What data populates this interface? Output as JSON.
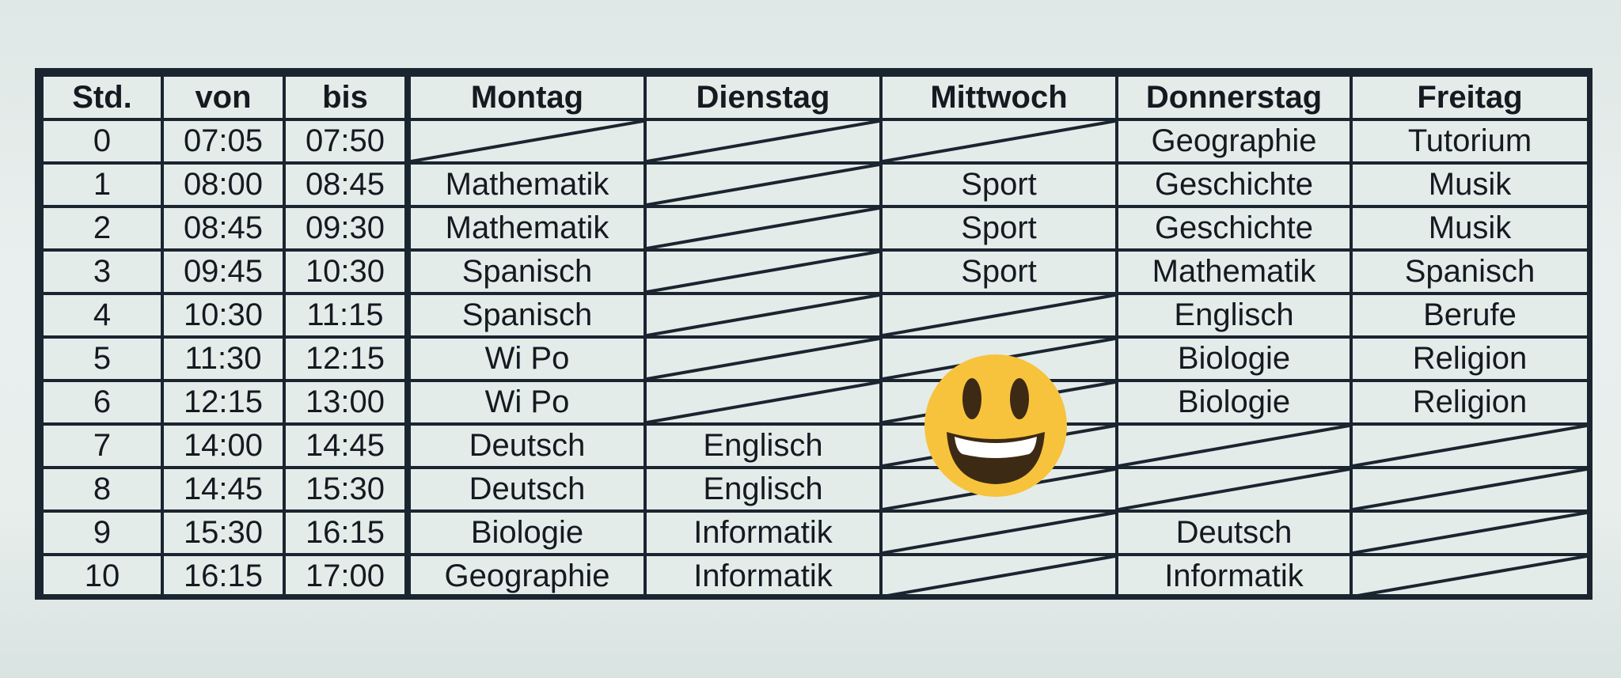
{
  "header": {
    "std": "Std.",
    "von": "von",
    "bis": "bis",
    "days": [
      "Montag",
      "Dienstag",
      "Mittwoch",
      "Donnerstag",
      "Freitag"
    ]
  },
  "rows": [
    {
      "std": "0",
      "von": "07:05",
      "bis": "07:50",
      "cells": [
        "",
        "",
        "",
        "Geographie",
        "Tutorium"
      ],
      "empty": [
        true,
        true,
        true,
        false,
        false
      ]
    },
    {
      "std": "1",
      "von": "08:00",
      "bis": "08:45",
      "cells": [
        "Mathematik",
        "",
        "Sport",
        "Geschichte",
        "Musik"
      ],
      "empty": [
        false,
        true,
        false,
        false,
        false
      ]
    },
    {
      "std": "2",
      "von": "08:45",
      "bis": "09:30",
      "cells": [
        "Mathematik",
        "",
        "Sport",
        "Geschichte",
        "Musik"
      ],
      "empty": [
        false,
        true,
        false,
        false,
        false
      ]
    },
    {
      "std": "3",
      "von": "09:45",
      "bis": "10:30",
      "cells": [
        "Spanisch",
        "",
        "Sport",
        "Mathematik",
        "Spanisch"
      ],
      "empty": [
        false,
        true,
        false,
        false,
        false
      ]
    },
    {
      "std": "4",
      "von": "10:30",
      "bis": "11:15",
      "cells": [
        "Spanisch",
        "",
        "",
        "Englisch",
        "Berufe"
      ],
      "empty": [
        false,
        true,
        true,
        false,
        false
      ]
    },
    {
      "std": "5",
      "von": "11:30",
      "bis": "12:15",
      "cells": [
        "Wi Po",
        "",
        "",
        "Biologie",
        "Religion"
      ],
      "empty": [
        false,
        true,
        true,
        false,
        false
      ]
    },
    {
      "std": "6",
      "von": "12:15",
      "bis": "13:00",
      "cells": [
        "Wi Po",
        "",
        "",
        "Biologie",
        "Religion"
      ],
      "empty": [
        false,
        true,
        true,
        false,
        false
      ]
    },
    {
      "std": "7",
      "von": "14:00",
      "bis": "14:45",
      "cells": [
        "Deutsch",
        "Englisch",
        "",
        "",
        ""
      ],
      "empty": [
        false,
        false,
        true,
        true,
        true
      ]
    },
    {
      "std": "8",
      "von": "14:45",
      "bis": "15:30",
      "cells": [
        "Deutsch",
        "Englisch",
        "",
        "",
        ""
      ],
      "empty": [
        false,
        false,
        true,
        true,
        true
      ]
    },
    {
      "std": "9",
      "von": "15:30",
      "bis": "16:15",
      "cells": [
        "Biologie",
        "Informatik",
        "",
        "Deutsch",
        ""
      ],
      "empty": [
        false,
        false,
        true,
        false,
        true
      ]
    },
    {
      "std": "10",
      "von": "16:15",
      "bis": "17:00",
      "cells": [
        "Geographie",
        "Informatik",
        "",
        "Informatik",
        ""
      ],
      "empty": [
        false,
        false,
        true,
        false,
        true
      ]
    }
  ],
  "overlay": {
    "icon": "smiling-face-emoji-icon",
    "face_color": "#f7c33d",
    "feature_color": "#3d2a14"
  },
  "colors": {
    "grid": "#1b2530",
    "paper": "#e4ecea",
    "text": "#141a20"
  }
}
